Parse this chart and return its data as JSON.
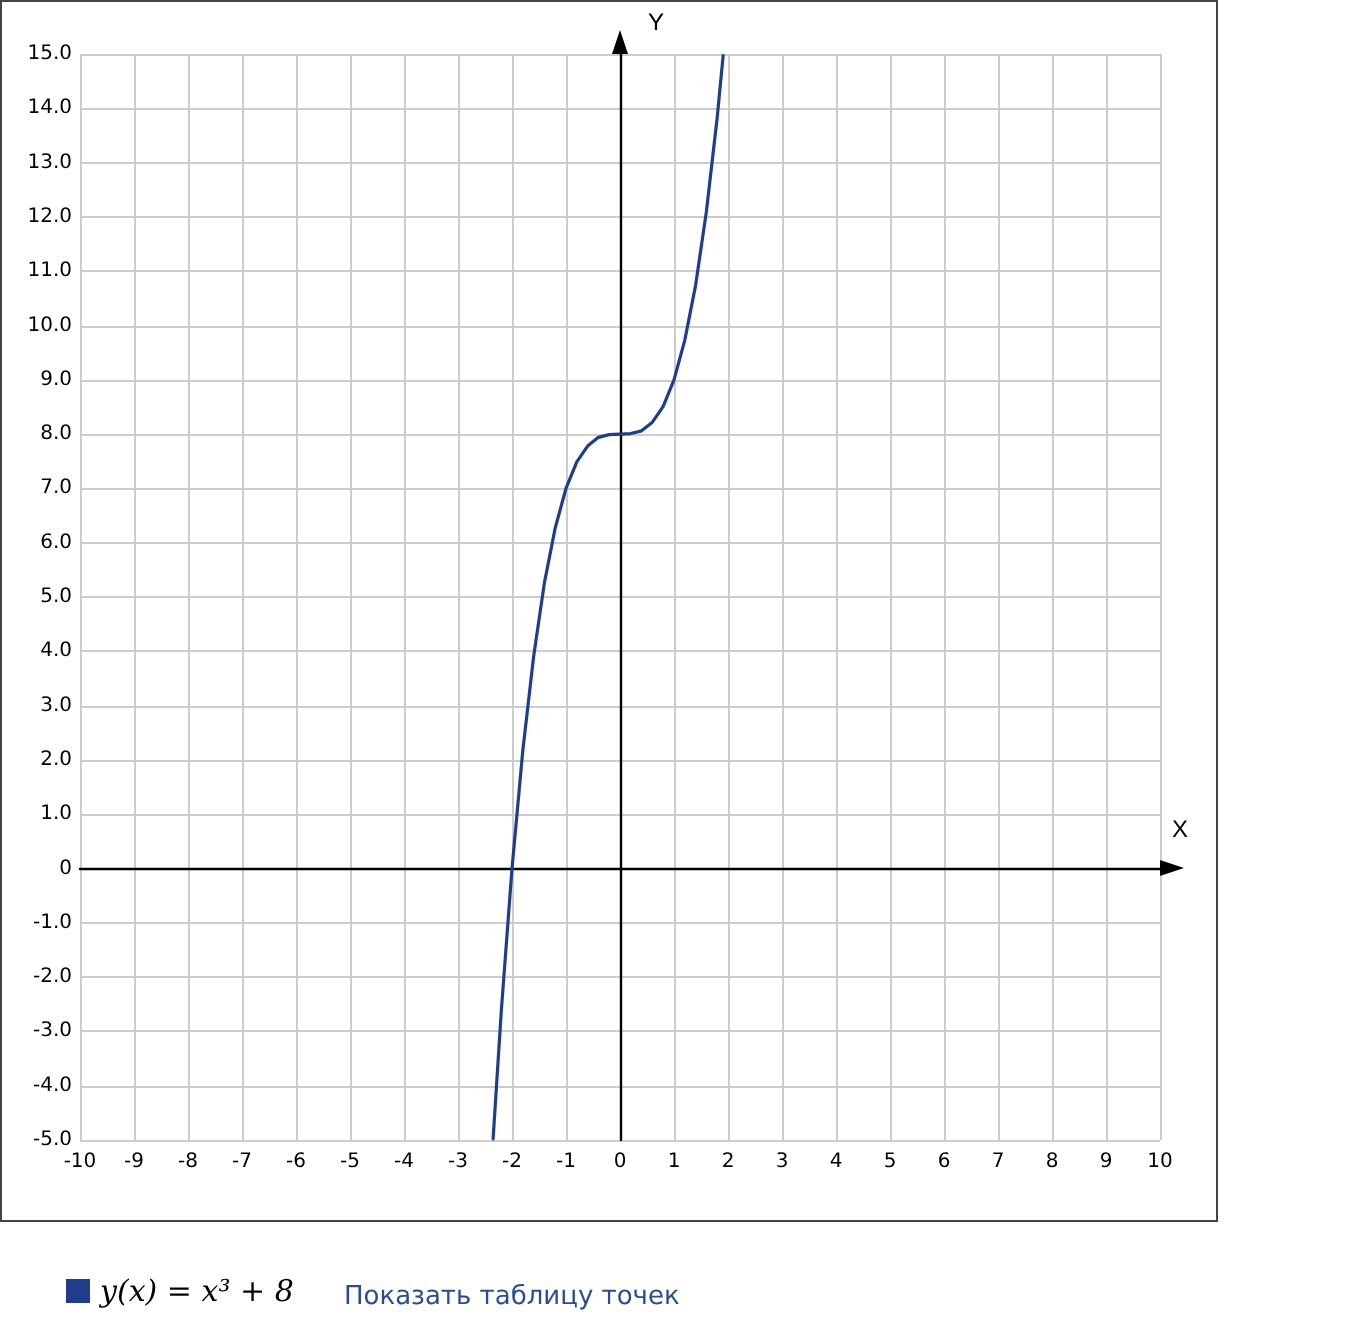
{
  "chart_data": {
    "type": "line",
    "xlabel": "X",
    "ylabel": "Y",
    "x": [
      -2.35,
      -2.2,
      -2.0,
      -1.8,
      -1.6,
      -1.4,
      -1.2,
      -1.0,
      -0.8,
      -0.6,
      -0.4,
      -0.2,
      0,
      0.2,
      0.4,
      0.6,
      0.8,
      1.0,
      1.2,
      1.4,
      1.6,
      1.8,
      1.91
    ],
    "series": [
      {
        "name": "y(x) = x³ + 8",
        "color": "#1f3d8c",
        "values": [
          -4.98,
          -2.65,
          0,
          2.17,
          3.9,
          5.26,
          6.27,
          7,
          7.49,
          7.78,
          7.94,
          7.99,
          8,
          8.01,
          8.06,
          8.22,
          8.51,
          9,
          9.73,
          10.74,
          12.1,
          13.83,
          14.97
        ]
      }
    ],
    "xlim": [
      -10,
      10
    ],
    "xticks": [
      -10,
      -9,
      -8,
      -7,
      -6,
      -5,
      -4,
      -3,
      -2,
      -1,
      0,
      1,
      2,
      3,
      4,
      5,
      6,
      7,
      8,
      9,
      10
    ],
    "ylim": [
      -5,
      15
    ],
    "yticks": [
      {
        "value": -5,
        "label": "-5.0"
      },
      {
        "value": -4,
        "label": "-4.0"
      },
      {
        "value": -3,
        "label": "-3.0"
      },
      {
        "value": -2,
        "label": "-2.0"
      },
      {
        "value": -1,
        "label": "-1.0"
      },
      0,
      {
        "value": 1,
        "label": "1.0"
      },
      {
        "value": 2,
        "label": "2.0"
      },
      {
        "value": 3,
        "label": "3.0"
      },
      {
        "value": 4,
        "label": "4.0"
      },
      {
        "value": 5,
        "label": "5.0"
      },
      {
        "value": 6,
        "label": "6.0"
      },
      {
        "value": 7,
        "label": "7.0"
      },
      {
        "value": 8,
        "label": "8.0"
      },
      {
        "value": 9,
        "label": "9.0"
      },
      {
        "value": 10,
        "label": "10.0"
      },
      {
        "value": 11,
        "label": "11.0"
      },
      {
        "value": 12,
        "label": "12.0"
      },
      {
        "value": 13,
        "label": "13.0"
      },
      {
        "value": 14,
        "label": "14.0"
      },
      {
        "value": 15,
        "label": "15.0"
      }
    ],
    "grid": true,
    "legend": "bottom left",
    "marker": "none",
    "line_style": "solid",
    "annotations": [
      "Показать таблицу точек"
    ]
  }
}
